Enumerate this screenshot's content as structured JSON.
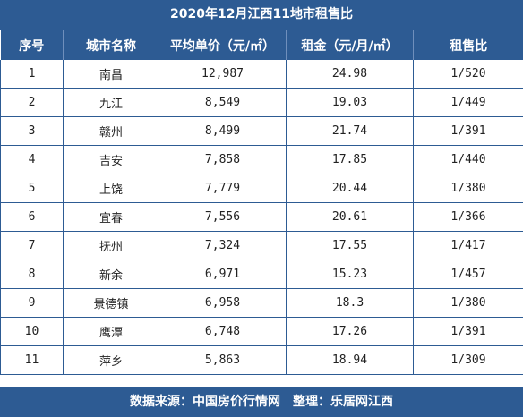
{
  "title": "2020年12月江西11地市租售比",
  "footer": "数据来源：中国房价行情网　整理：乐居网江西",
  "chart_data": {
    "type": "table",
    "columns": [
      "序号",
      "城市名称",
      "平均单价（元/㎡）",
      "租金（元/月/㎡）",
      "租售比"
    ],
    "rows": [
      [
        "1",
        "南昌",
        "12,987",
        "24.98",
        "1/520"
      ],
      [
        "2",
        "九江",
        "8,549",
        "19.03",
        "1/449"
      ],
      [
        "3",
        "赣州",
        "8,499",
        "21.74",
        "1/391"
      ],
      [
        "4",
        "吉安",
        "7,858",
        "17.85",
        "1/440"
      ],
      [
        "5",
        "上饶",
        "7,779",
        "20.44",
        "1/380"
      ],
      [
        "6",
        "宜春",
        "7,556",
        "20.61",
        "1/366"
      ],
      [
        "7",
        "抚州",
        "7,324",
        "17.55",
        "1/417"
      ],
      [
        "8",
        "新余",
        "6,971",
        "15.23",
        "1/457"
      ],
      [
        "9",
        "景德镇",
        "6,958",
        "18.3",
        "1/380"
      ],
      [
        "10",
        "鹰潭",
        "6,748",
        "17.26",
        "1/391"
      ],
      [
        "11",
        "萍乡",
        "5,863",
        "18.94",
        "1/309"
      ]
    ]
  },
  "colors": {
    "header_bg": "#2d5b93",
    "header_text": "#ffffff",
    "border": "#2d5b93"
  }
}
